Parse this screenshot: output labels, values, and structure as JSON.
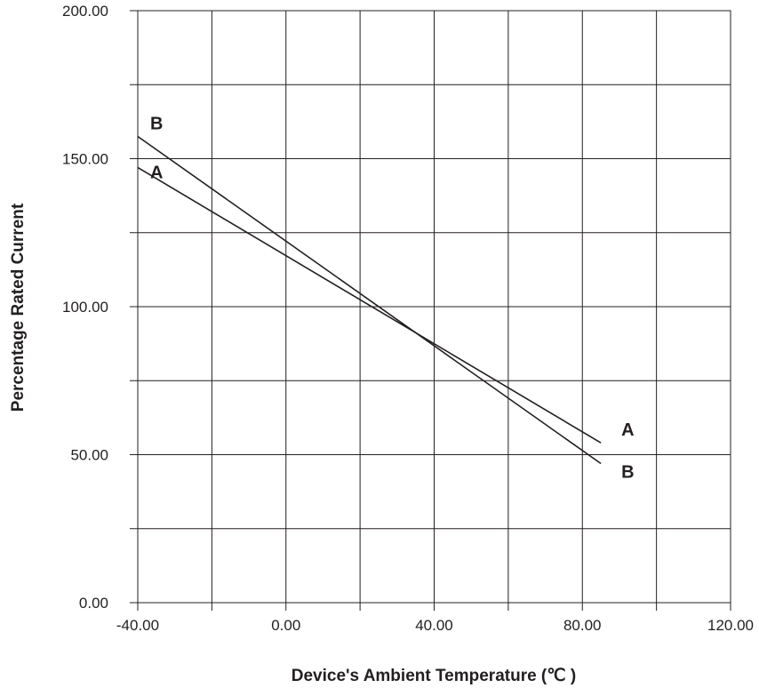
{
  "chart_data": {
    "type": "line",
    "title": "",
    "xlabel": "Device's Ambient Temperature (℃ )",
    "ylabel": "Percentage Rated Current",
    "xlim": [
      -40,
      120
    ],
    "ylim": [
      0,
      200
    ],
    "x_ticks": [
      "-40.00",
      "0.00",
      "40.00",
      "80.00",
      "120.00"
    ],
    "y_ticks": [
      "0.00",
      "50.00",
      "100.00",
      "150.00",
      "200.00"
    ],
    "x_tick_values": [
      -40,
      0,
      40,
      80,
      120
    ],
    "y_tick_values": [
      0,
      50,
      100,
      150,
      200
    ],
    "x_minor_step": 20,
    "y_minor_step": 25,
    "grid": true,
    "series": [
      {
        "name": "A",
        "x": [
          -40,
          85
        ],
        "y": [
          147,
          54
        ],
        "start_label": "A",
        "end_label": "A"
      },
      {
        "name": "B",
        "x": [
          -40,
          85
        ],
        "y": [
          157.5,
          47
        ],
        "start_label": "B",
        "end_label": "B"
      }
    ]
  }
}
